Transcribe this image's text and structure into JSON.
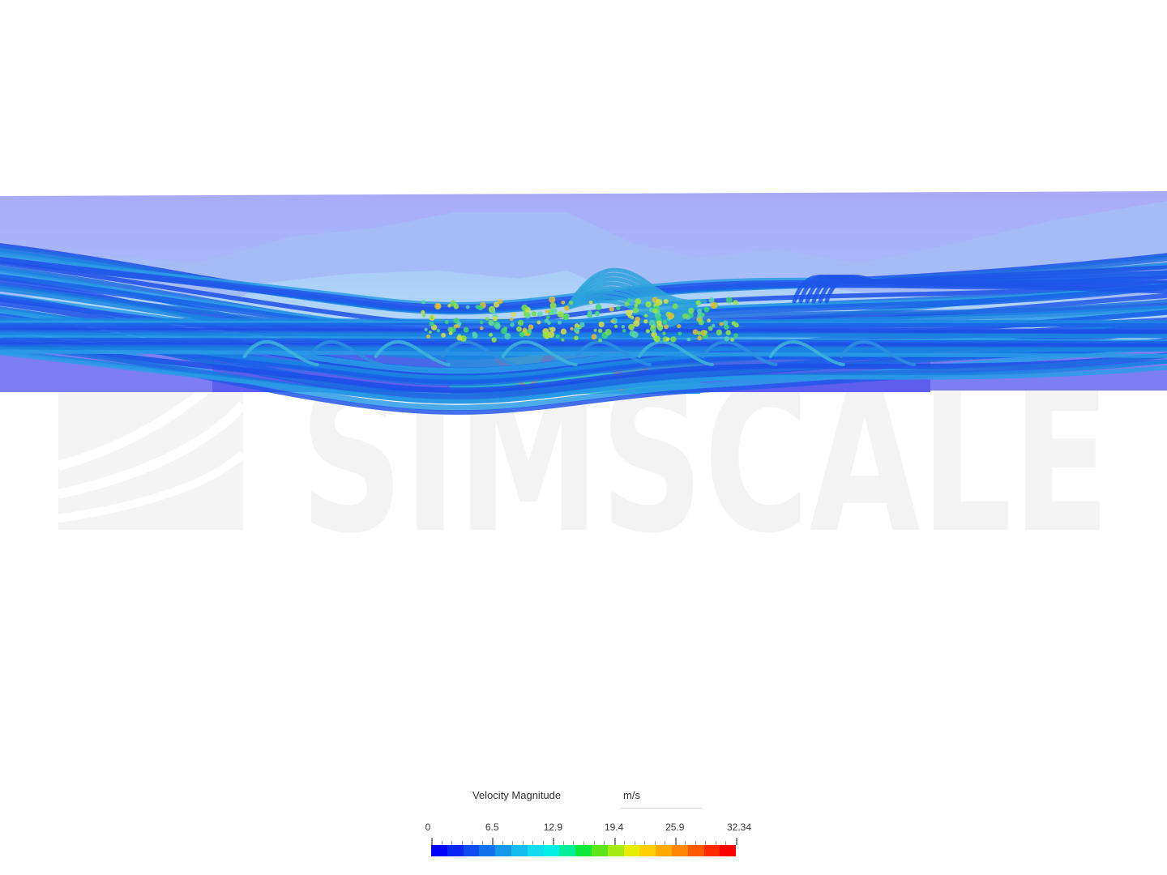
{
  "watermark": {
    "text": "SIMSCALE",
    "logo_icon": "simscale-logo-icon"
  },
  "legend": {
    "title": "Velocity Magnitude",
    "unit": "m/s",
    "ticks": [
      "0",
      "6.5",
      "12.9",
      "19.4",
      "25.9",
      "32.34"
    ],
    "min": 0,
    "max": 32.34,
    "colors": [
      "#0000ff",
      "#0a26f5",
      "#0f4cef",
      "#1272ec",
      "#1498e7",
      "#16bdec",
      "#12dcf0",
      "#00f0e6",
      "#00ee9a",
      "#10e83c",
      "#5ee61a",
      "#a6ea14",
      "#e6ee00",
      "#ffd000",
      "#ffaa00",
      "#ff8600",
      "#ff5a00",
      "#ff2a00",
      "#ff0000"
    ]
  },
  "colors": {
    "background": "#ffffff",
    "fluid_domain_top": "#aeaef7",
    "fluid_domain_mid": "#a8c2f7",
    "ground_band": "#6f6ff1",
    "watermark": "#f4f4f4",
    "streamline_base": "#1f5fe0"
  }
}
